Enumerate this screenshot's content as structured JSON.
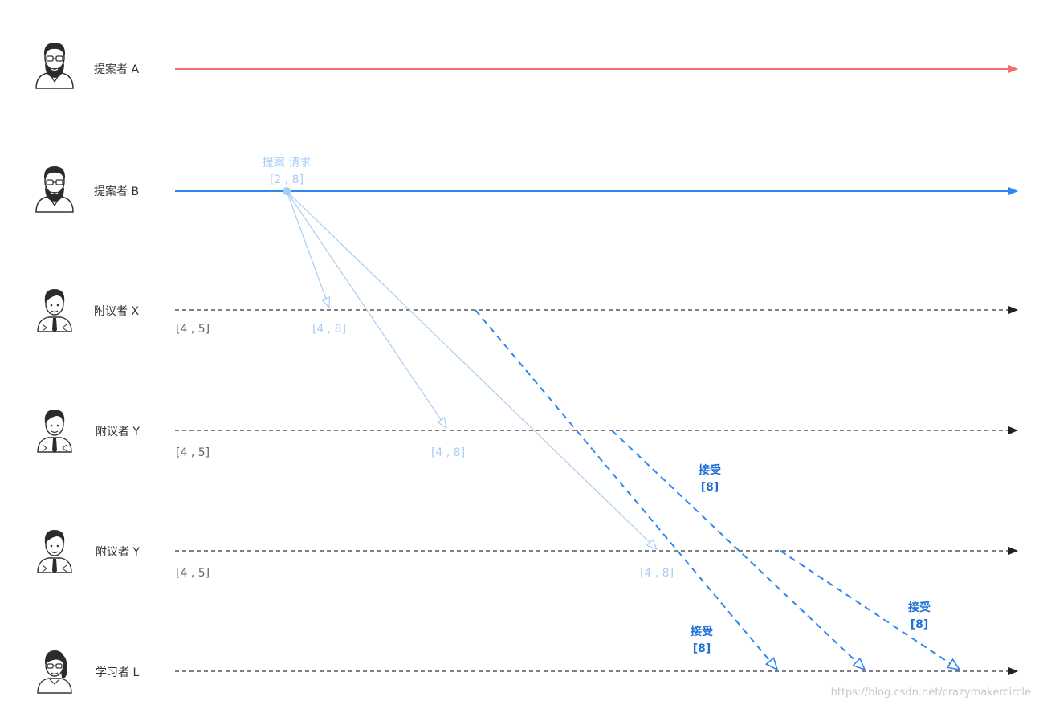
{
  "actors": [
    {
      "id": "proposer-a",
      "label": "提案者 A",
      "role": "proposer",
      "line_color": "#f26d6d"
    },
    {
      "id": "proposer-b",
      "label": "提案者 B",
      "role": "proposer",
      "line_color": "#2e86f0"
    },
    {
      "id": "acceptor-x",
      "label": "附议者 X",
      "role": "acceptor",
      "state": "[4 , 5]",
      "received": "[4 , 8]"
    },
    {
      "id": "acceptor-y1",
      "label": "附议者 Y",
      "role": "acceptor",
      "state": "[4 , 5]",
      "received": "[4 , 8]"
    },
    {
      "id": "acceptor-y2",
      "label": "附议者 Y",
      "role": "acceptor",
      "state": "[4 , 5]",
      "received": "[4 , 8]"
    },
    {
      "id": "learner-l",
      "label": "学习者 L",
      "role": "learner"
    }
  ],
  "proposal": {
    "title": "提案 请求",
    "value": "[2 , 8]"
  },
  "accept_labels": [
    {
      "title": "接受",
      "value": "[8]"
    },
    {
      "title": "接受",
      "value": "[8]"
    },
    {
      "title": "接受",
      "value": "[8]"
    }
  ],
  "colors": {
    "request_arrow": "#a8cdf4",
    "accept_arrow": "#2e86f0",
    "dashed_timeline": "#555555",
    "accept_text": "#1f6fd6"
  },
  "watermark": "https://blog.csdn.net/crazymakercircle"
}
